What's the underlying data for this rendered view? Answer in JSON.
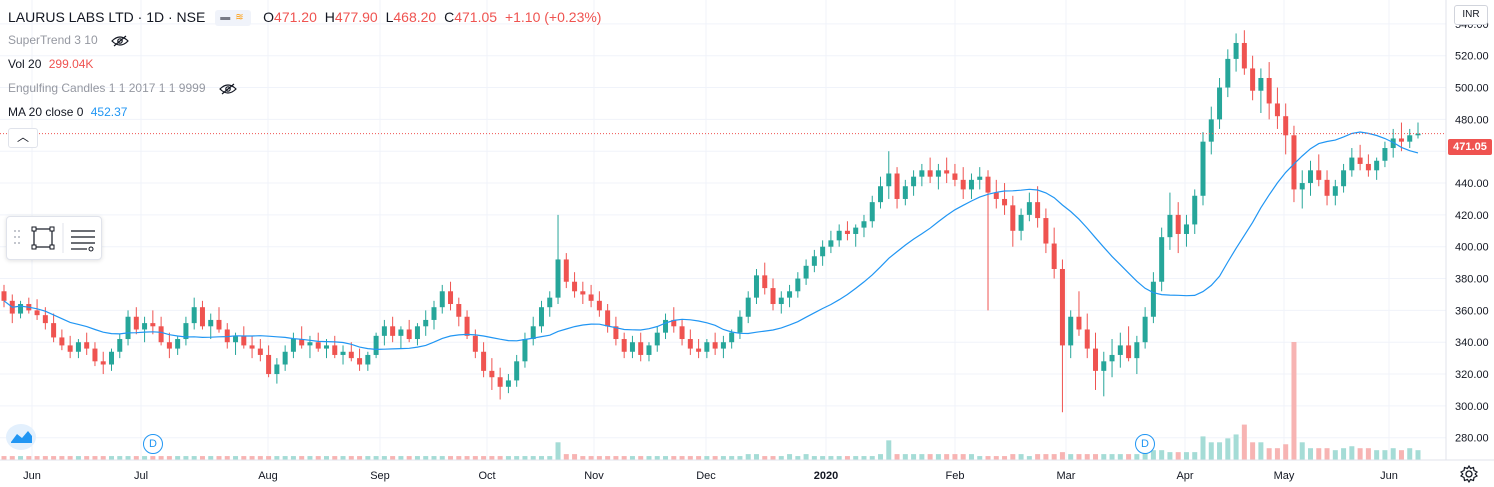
{
  "header": {
    "symbol": "LAURUS LABS LTD · 1D · NSE",
    "ohlc": {
      "o_label": "O",
      "o": "471.20",
      "h_label": "H",
      "h": "477.90",
      "l_label": "L",
      "l": "468.20",
      "c_label": "C",
      "c": "471.05",
      "change": "+1.10 (+0.23%)"
    }
  },
  "indicators": {
    "supertrend": "SuperTrend 3 10",
    "volume_label": "Vol 20",
    "volume_value": "299.04K",
    "engulfing": "Engulfing Candles 1 1 2017 1 1 9999",
    "ma_label": "MA 20 close 0",
    "ma_value": "452.37"
  },
  "price_axis": {
    "currency": "INR",
    "last_price": "471.05",
    "ticks": [
      "540.00",
      "520.00",
      "500.00",
      "480.00",
      "460.00",
      "440.00",
      "420.00",
      "400.00",
      "380.00",
      "360.00",
      "340.00",
      "320.00",
      "300.00",
      "280.00"
    ]
  },
  "time_axis": {
    "labels": [
      "Jun",
      "Jul",
      "Aug",
      "Sep",
      "Oct",
      "Nov",
      "Dec",
      "2020",
      "Feb",
      "Mar",
      "Apr",
      "May",
      "Jun"
    ]
  },
  "badges": [
    "D",
    "D"
  ],
  "colors": {
    "up": "#26a69a",
    "down": "#ef5350",
    "ma": "#2196f3",
    "vol_up": "#a5dcd6",
    "vol_down": "#f7b4b3"
  },
  "icons": [
    "chart-type-icon",
    "eye-off-icon",
    "collapse-icon",
    "rectangle-tool-icon",
    "lines-tool-icon",
    "tradingview-logo-icon",
    "settings-gear-icon"
  ],
  "chart_data": {
    "type": "candlestick",
    "title": "LAURUS LABS LTD · 1D · NSE",
    "ylim": [
      270,
      550
    ],
    "grid": true,
    "month_labels": [
      "Jun",
      "Jul",
      "Aug",
      "Sep",
      "Oct",
      "Nov",
      "Dec",
      "2020",
      "Feb",
      "Mar",
      "Apr",
      "May",
      "Jun"
    ],
    "last_close": 471.05,
    "ma20_last": 452.37,
    "candles": [
      [
        372,
        376,
        362,
        366
      ],
      [
        366,
        370,
        352,
        358
      ],
      [
        358,
        366,
        355,
        364
      ],
      [
        364,
        368,
        358,
        360
      ],
      [
        360,
        367,
        354,
        357
      ],
      [
        357,
        362,
        348,
        352
      ],
      [
        352,
        358,
        340,
        343
      ],
      [
        343,
        348,
        335,
        338
      ],
      [
        338,
        344,
        330,
        334
      ],
      [
        334,
        342,
        330,
        340
      ],
      [
        340,
        346,
        332,
        336
      ],
      [
        336,
        340,
        325,
        328
      ],
      [
        328,
        334,
        320,
        326
      ],
      [
        326,
        336,
        322,
        334
      ],
      [
        334,
        345,
        330,
        342
      ],
      [
        342,
        360,
        338,
        356
      ],
      [
        356,
        362,
        345,
        348
      ],
      [
        348,
        356,
        340,
        352
      ],
      [
        352,
        360,
        345,
        350
      ],
      [
        350,
        356,
        338,
        340
      ],
      [
        340,
        346,
        330,
        336
      ],
      [
        336,
        344,
        332,
        342
      ],
      [
        342,
        356,
        338,
        352
      ],
      [
        352,
        368,
        348,
        362
      ],
      [
        362,
        366,
        348,
        350
      ],
      [
        350,
        358,
        342,
        354
      ],
      [
        354,
        362,
        346,
        348
      ],
      [
        348,
        352,
        336,
        340
      ],
      [
        340,
        346,
        332,
        344
      ],
      [
        344,
        350,
        336,
        338
      ],
      [
        338,
        344,
        330,
        336
      ],
      [
        336,
        342,
        328,
        332
      ],
      [
        332,
        338,
        318,
        320
      ],
      [
        320,
        330,
        314,
        326
      ],
      [
        326,
        338,
        322,
        334
      ],
      [
        334,
        346,
        330,
        342
      ],
      [
        342,
        350,
        336,
        338
      ],
      [
        338,
        344,
        330,
        340
      ],
      [
        340,
        346,
        334,
        336
      ],
      [
        336,
        342,
        330,
        338
      ],
      [
        338,
        344,
        330,
        332
      ],
      [
        332,
        338,
        326,
        334
      ],
      [
        334,
        340,
        328,
        330
      ],
      [
        330,
        336,
        322,
        326
      ],
      [
        326,
        334,
        322,
        332
      ],
      [
        332,
        346,
        330,
        344
      ],
      [
        344,
        354,
        338,
        350
      ],
      [
        350,
        356,
        340,
        344
      ],
      [
        344,
        350,
        336,
        348
      ],
      [
        348,
        354,
        340,
        342
      ],
      [
        342,
        352,
        338,
        350
      ],
      [
        350,
        360,
        344,
        354
      ],
      [
        354,
        366,
        348,
        362
      ],
      [
        362,
        376,
        358,
        372
      ],
      [
        372,
        378,
        360,
        364
      ],
      [
        364,
        368,
        350,
        356
      ],
      [
        356,
        360,
        342,
        344
      ],
      [
        344,
        348,
        330,
        334
      ],
      [
        334,
        340,
        318,
        322
      ],
      [
        322,
        330,
        310,
        318
      ],
      [
        318,
        324,
        304,
        312
      ],
      [
        312,
        320,
        308,
        316
      ],
      [
        316,
        332,
        312,
        328
      ],
      [
        328,
        346,
        324,
        342
      ],
      [
        342,
        356,
        338,
        350
      ],
      [
        350,
        366,
        346,
        362
      ],
      [
        362,
        372,
        356,
        368
      ],
      [
        368,
        420,
        364,
        392
      ],
      [
        392,
        396,
        374,
        378
      ],
      [
        378,
        384,
        368,
        372
      ],
      [
        372,
        378,
        364,
        370
      ],
      [
        370,
        376,
        362,
        366
      ],
      [
        366,
        372,
        356,
        360
      ],
      [
        360,
        364,
        346,
        350
      ],
      [
        350,
        356,
        338,
        342
      ],
      [
        342,
        346,
        330,
        334
      ],
      [
        334,
        344,
        330,
        340
      ],
      [
        340,
        346,
        328,
        332
      ],
      [
        332,
        340,
        328,
        338
      ],
      [
        338,
        350,
        334,
        346
      ],
      [
        346,
        358,
        342,
        354
      ],
      [
        354,
        362,
        346,
        350
      ],
      [
        350,
        354,
        338,
        342
      ],
      [
        342,
        348,
        332,
        336
      ],
      [
        336,
        342,
        330,
        334
      ],
      [
        334,
        342,
        330,
        340
      ],
      [
        340,
        346,
        332,
        336
      ],
      [
        336,
        344,
        330,
        340
      ],
      [
        340,
        348,
        336,
        346
      ],
      [
        346,
        360,
        342,
        356
      ],
      [
        356,
        372,
        352,
        368
      ],
      [
        368,
        386,
        364,
        382
      ],
      [
        382,
        390,
        370,
        374
      ],
      [
        374,
        380,
        360,
        364
      ],
      [
        364,
        372,
        358,
        368
      ],
      [
        368,
        376,
        362,
        372
      ],
      [
        372,
        384,
        368,
        380
      ],
      [
        380,
        392,
        376,
        388
      ],
      [
        388,
        398,
        384,
        394
      ],
      [
        394,
        404,
        388,
        400
      ],
      [
        400,
        410,
        396,
        404
      ],
      [
        404,
        414,
        400,
        410
      ],
      [
        410,
        416,
        404,
        408
      ],
      [
        408,
        414,
        400,
        412
      ],
      [
        412,
        420,
        406,
        416
      ],
      [
        416,
        432,
        412,
        428
      ],
      [
        428,
        444,
        424,
        438
      ],
      [
        438,
        460,
        430,
        446
      ],
      [
        446,
        450,
        424,
        430
      ],
      [
        430,
        442,
        426,
        438
      ],
      [
        438,
        448,
        432,
        444
      ],
      [
        444,
        452,
        438,
        448
      ],
      [
        448,
        456,
        440,
        444
      ],
      [
        444,
        452,
        436,
        448
      ],
      [
        448,
        456,
        440,
        446
      ],
      [
        446,
        452,
        438,
        442
      ],
      [
        442,
        450,
        430,
        436
      ],
      [
        436,
        446,
        430,
        442
      ],
      [
        442,
        450,
        436,
        444
      ],
      [
        444,
        448,
        360,
        434
      ],
      [
        434,
        442,
        424,
        430
      ],
      [
        430,
        440,
        420,
        426
      ],
      [
        426,
        432,
        400,
        410
      ],
      [
        410,
        424,
        404,
        420
      ],
      [
        420,
        434,
        416,
        428
      ],
      [
        428,
        438,
        412,
        418
      ],
      [
        418,
        424,
        396,
        402
      ],
      [
        402,
        412,
        380,
        386
      ],
      [
        386,
        392,
        296,
        338
      ],
      [
        338,
        360,
        330,
        356
      ],
      [
        356,
        372,
        344,
        348
      ],
      [
        348,
        358,
        330,
        336
      ],
      [
        336,
        346,
        310,
        322
      ],
      [
        322,
        334,
        306,
        328
      ],
      [
        328,
        342,
        318,
        332
      ],
      [
        332,
        346,
        324,
        338
      ],
      [
        338,
        350,
        328,
        330
      ],
      [
        330,
        344,
        320,
        340
      ],
      [
        340,
        362,
        336,
        356
      ],
      [
        356,
        384,
        352,
        378
      ],
      [
        378,
        412,
        372,
        406
      ],
      [
        406,
        434,
        398,
        420
      ],
      [
        420,
        428,
        396,
        408
      ],
      [
        408,
        420,
        400,
        414
      ],
      [
        414,
        436,
        408,
        432
      ],
      [
        432,
        472,
        426,
        466
      ],
      [
        466,
        488,
        458,
        480
      ],
      [
        480,
        506,
        474,
        500
      ],
      [
        500,
        524,
        494,
        518
      ],
      [
        518,
        534,
        510,
        528
      ],
      [
        528,
        536,
        508,
        512
      ],
      [
        512,
        520,
        492,
        498
      ],
      [
        498,
        512,
        484,
        506
      ],
      [
        506,
        516,
        480,
        490
      ],
      [
        490,
        500,
        474,
        482
      ],
      [
        482,
        490,
        458,
        470
      ],
      [
        470,
        476,
        428,
        436
      ],
      [
        436,
        448,
        424,
        440
      ],
      [
        440,
        454,
        432,
        448
      ],
      [
        448,
        458,
        438,
        442
      ],
      [
        442,
        448,
        426,
        432
      ],
      [
        432,
        442,
        426,
        438
      ],
      [
        438,
        452,
        434,
        448
      ],
      [
        448,
        462,
        444,
        456
      ],
      [
        456,
        464,
        448,
        452
      ],
      [
        452,
        458,
        444,
        448
      ],
      [
        448,
        456,
        442,
        454
      ],
      [
        454,
        466,
        450,
        462
      ],
      [
        462,
        474,
        456,
        468
      ],
      [
        468,
        478,
        460,
        466
      ],
      [
        466,
        474,
        462,
        470
      ],
      [
        470,
        478,
        468,
        471
      ]
    ],
    "volume": [
      0.2,
      0.2,
      0.2,
      0.2,
      0.2,
      0.2,
      0.2,
      0.2,
      0.2,
      0.2,
      0.2,
      0.2,
      0.2,
      0.2,
      0.2,
      0.2,
      0.2,
      0.2,
      0.2,
      0.2,
      0.2,
      0.2,
      0.2,
      0.2,
      0.2,
      0.2,
      0.2,
      0.2,
      0.2,
      0.2,
      0.2,
      0.2,
      0.2,
      0.2,
      0.2,
      0.2,
      0.2,
      0.2,
      0.2,
      0.2,
      0.2,
      0.2,
      0.2,
      0.2,
      0.2,
      0.2,
      0.2,
      0.2,
      0.2,
      0.2,
      0.2,
      0.2,
      0.2,
      0.2,
      0.2,
      0.2,
      0.2,
      0.2,
      0.2,
      0.2,
      0.2,
      0.2,
      0.2,
      0.2,
      0.2,
      0.2,
      0.2,
      0.9,
      0.3,
      0.3,
      0.2,
      0.2,
      0.2,
      0.2,
      0.2,
      0.2,
      0.2,
      0.2,
      0.2,
      0.2,
      0.2,
      0.2,
      0.2,
      0.2,
      0.2,
      0.2,
      0.2,
      0.2,
      0.2,
      0.2,
      0.3,
      0.3,
      0.2,
      0.2,
      0.2,
      0.3,
      0.2,
      0.3,
      0.2,
      0.2,
      0.2,
      0.2,
      0.2,
      0.2,
      0.2,
      0.2,
      0.3,
      1.0,
      0.3,
      0.3,
      0.3,
      0.3,
      0.3,
      0.3,
      0.3,
      0.3,
      0.3,
      0.3,
      0.2,
      0.2,
      0.2,
      0.2,
      0.3,
      0.3,
      0.2,
      0.3,
      0.3,
      0.3,
      0.4,
      0.3,
      0.3,
      0.3,
      0.3,
      0.3,
      0.3,
      0.3,
      0.3,
      0.3,
      0.4,
      0.5,
      0.5,
      0.4,
      0.4,
      0.4,
      0.4,
      1.2,
      0.9,
      0.9,
      1.1,
      1.3,
      1.8,
      0.9,
      0.9,
      0.6,
      0.6,
      0.8,
      6.0,
      0.9,
      0.6,
      0.6,
      0.6,
      0.5,
      0.6,
      0.7,
      0.6,
      0.6,
      0.5,
      0.5,
      0.6,
      0.5,
      0.6,
      0.5,
      0.5
    ]
  }
}
